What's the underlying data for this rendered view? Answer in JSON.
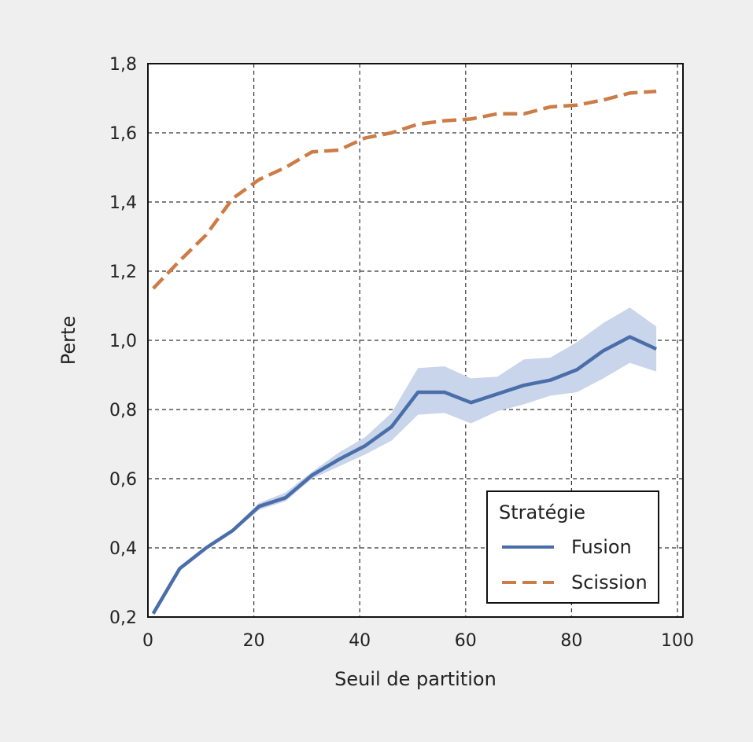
{
  "chart_data": {
    "type": "line",
    "xlabel": "Seuil de partition",
    "ylabel": "Perte",
    "xlim": [
      0,
      100
    ],
    "ylim": [
      0.2,
      1.8
    ],
    "xticks": [
      0,
      20,
      40,
      60,
      80,
      100
    ],
    "xtick_labels": [
      "0",
      "20",
      "40",
      "60",
      "80",
      "100"
    ],
    "yticks": [
      0.2,
      0.4,
      0.6,
      0.8,
      1.0,
      1.2,
      1.4,
      1.6,
      1.8
    ],
    "ytick_labels": [
      "0,2",
      "0,4",
      "0,6",
      "0,8",
      "1,0",
      "1,2",
      "1,4",
      "1,6",
      "1,8"
    ],
    "grid": true,
    "legend": {
      "title": "Stratégie",
      "placement": "lower-right"
    },
    "x": [
      1,
      6,
      11,
      16,
      21,
      26,
      31,
      36,
      41,
      46,
      51,
      56,
      61,
      66,
      71,
      76,
      81,
      86,
      91,
      96
    ],
    "series": [
      {
        "name": "Fusion",
        "color": "#4a6ea9",
        "style": "solid",
        "values": [
          0.21,
          0.34,
          0.4,
          0.45,
          0.52,
          0.545,
          0.61,
          0.655,
          0.695,
          0.75,
          0.85,
          0.85,
          0.82,
          0.845,
          0.87,
          0.885,
          0.915,
          0.97,
          1.01,
          0.975
        ],
        "band_color": "#c9d5ea",
        "band_low": [
          0.205,
          0.335,
          0.395,
          0.445,
          0.51,
          0.535,
          0.6,
          0.635,
          0.67,
          0.71,
          0.785,
          0.79,
          0.76,
          0.795,
          0.815,
          0.84,
          0.85,
          0.89,
          0.935,
          0.91
        ],
        "band_high": [
          0.215,
          0.345,
          0.405,
          0.455,
          0.53,
          0.56,
          0.62,
          0.675,
          0.72,
          0.79,
          0.92,
          0.925,
          0.89,
          0.895,
          0.945,
          0.95,
          0.995,
          1.05,
          1.095,
          1.04
        ]
      },
      {
        "name": "Scission",
        "color": "#cc7d47",
        "style": "dashed",
        "values": [
          1.15,
          1.23,
          1.305,
          1.41,
          1.465,
          1.5,
          1.545,
          1.55,
          1.585,
          1.6,
          1.625,
          1.635,
          1.64,
          1.655,
          1.655,
          1.675,
          1.68,
          1.695,
          1.715,
          1.72
        ]
      }
    ]
  }
}
